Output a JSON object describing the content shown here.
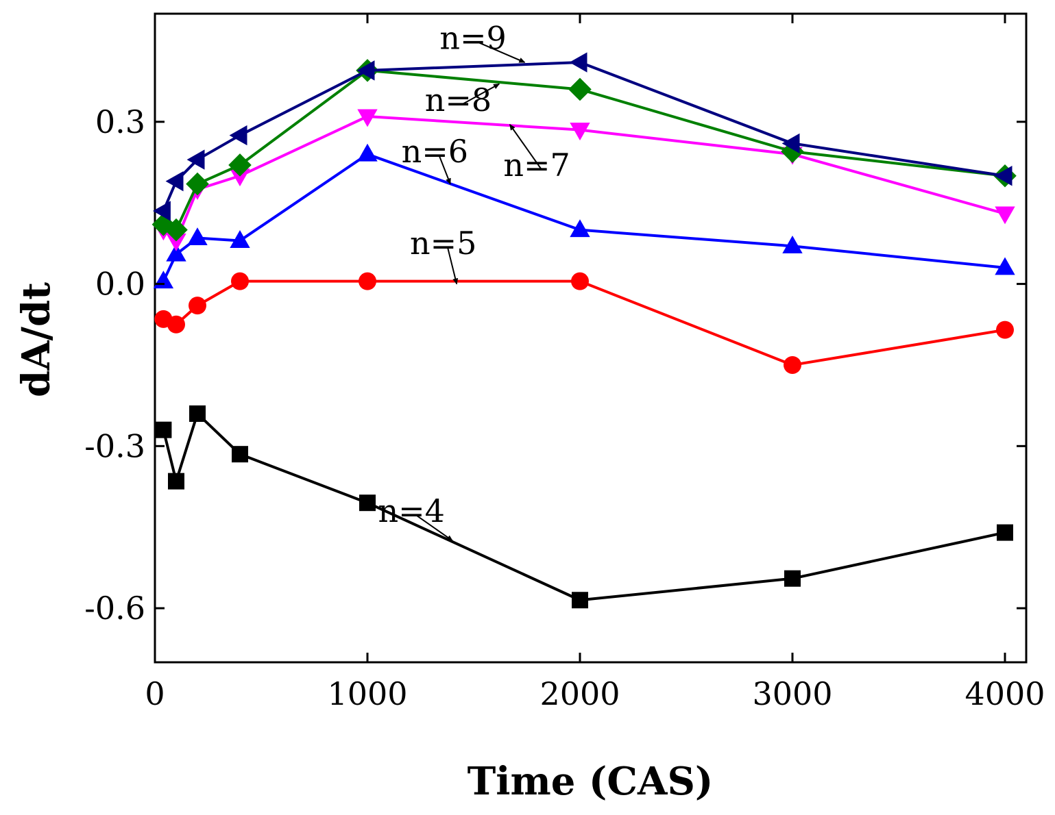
{
  "chart_data": {
    "type": "line",
    "xlabel": "Time (CAS)",
    "ylabel": "dA/dt",
    "xlim": [
      0,
      4100
    ],
    "ylim": [
      -0.7,
      0.5
    ],
    "xticks": [
      0,
      1000,
      2000,
      3000,
      4000
    ],
    "xtick_labels": [
      "0",
      "1000",
      "2000",
      "3000",
      "4000"
    ],
    "yticks": [
      -0.6,
      -0.3,
      0.0,
      0.3
    ],
    "ytick_labels": [
      "-0.6",
      "-0.3",
      "0.0",
      "0.3"
    ],
    "grid": false,
    "legend": "none",
    "series": [
      {
        "key": "n4",
        "color": "#000000",
        "marker": "square",
        "x": [
          40,
          100,
          200,
          400,
          1000,
          2000,
          3000,
          4000
        ],
        "y": [
          -0.27,
          -0.365,
          -0.24,
          -0.315,
          -0.405,
          -0.585,
          -0.545,
          -0.46
        ]
      },
      {
        "key": "n5",
        "color": "#ff0000",
        "marker": "circle",
        "x": [
          40,
          100,
          200,
          400,
          1000,
          2000,
          3000,
          4000
        ],
        "y": [
          -0.065,
          -0.075,
          -0.04,
          0.005,
          0.005,
          0.005,
          -0.15,
          -0.085
        ]
      },
      {
        "key": "n6",
        "color": "#0000ff",
        "marker": "triangle-up",
        "x": [
          40,
          100,
          200,
          400,
          1000,
          2000,
          3000,
          4000
        ],
        "y": [
          0.005,
          0.055,
          0.085,
          0.08,
          0.24,
          0.1,
          0.07,
          0.03
        ]
      },
      {
        "key": "n7",
        "color": "#ff00ff",
        "marker": "triangle-down",
        "x": [
          40,
          100,
          200,
          400,
          1000,
          2000,
          3000,
          4000
        ],
        "y": [
          0.1,
          0.08,
          0.175,
          0.2,
          0.31,
          0.285,
          0.24,
          0.13
        ]
      },
      {
        "key": "n8",
        "color": "#008000",
        "marker": "diamond",
        "x": [
          40,
          100,
          200,
          400,
          1000,
          2000,
          3000,
          4000
        ],
        "y": [
          0.11,
          0.1,
          0.185,
          0.22,
          0.395,
          0.36,
          0.245,
          0.2
        ]
      },
      {
        "key": "n9",
        "color": "#000080",
        "marker": "triangle-left",
        "x": [
          40,
          100,
          200,
          400,
          1000,
          2000,
          3000,
          4000
        ],
        "y": [
          0.135,
          0.19,
          0.23,
          0.275,
          0.395,
          0.41,
          0.26,
          0.2
        ]
      }
    ],
    "annotations": [
      {
        "key": "n4",
        "text": "n=4",
        "x": 1050,
        "y": -0.44,
        "arrow_to": [
          1400,
          -0.475
        ]
      },
      {
        "key": "n5",
        "text": "n=5",
        "x": 1200,
        "y": 0.055,
        "arrow_to": [
          1420,
          0.0
        ]
      },
      {
        "key": "n6",
        "text": "n=6",
        "x": 1160,
        "y": 0.225,
        "arrow_to": [
          1390,
          0.185
        ]
      },
      {
        "key": "n7",
        "text": "n=7",
        "x": 1640,
        "y": 0.2,
        "arrow_to": [
          1670,
          0.295
        ]
      },
      {
        "key": "n8",
        "text": "n=8",
        "x": 1270,
        "y": 0.32,
        "arrow_to": [
          1620,
          0.37
        ]
      },
      {
        "key": "n9",
        "text": "n=9",
        "x": 1340,
        "y": 0.435,
        "arrow_to": [
          1740,
          0.41
        ]
      }
    ]
  }
}
